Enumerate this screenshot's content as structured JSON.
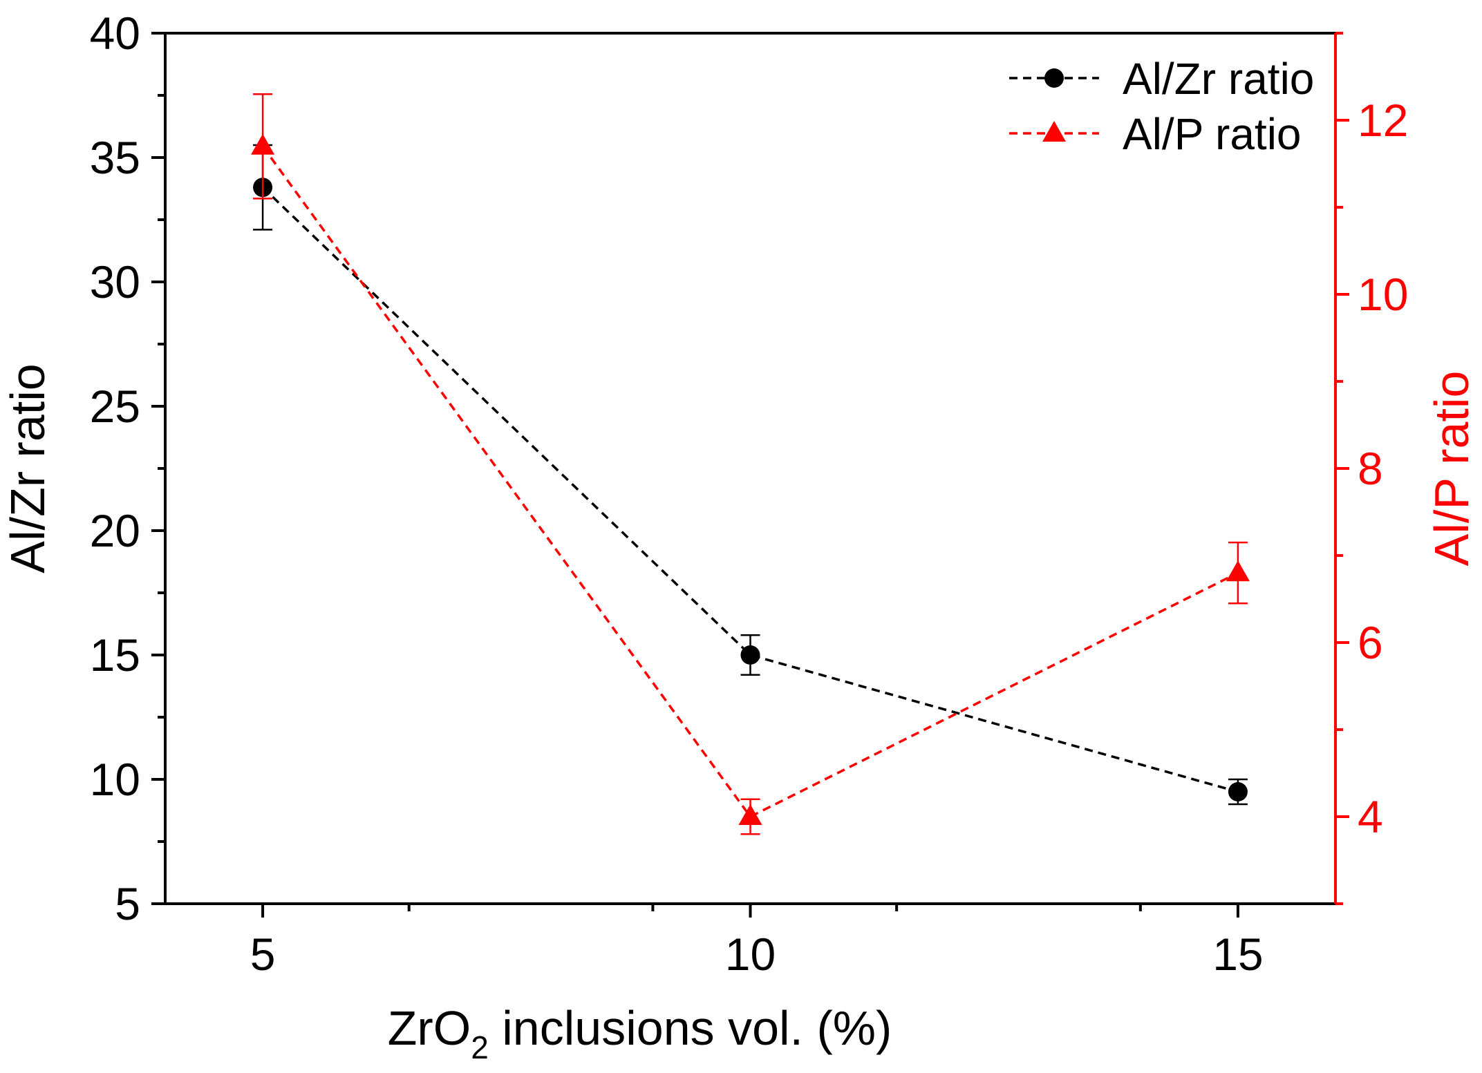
{
  "chart_data": {
    "type": "line",
    "x": [
      5,
      10,
      15
    ],
    "xlabel_main": "ZrO",
    "xlabel_sub": "2",
    "xlabel_rest": " inclusions vol. (%)",
    "xlim": [
      4,
      16
    ],
    "xticks": [
      "5",
      "10",
      "15"
    ],
    "y_left": {
      "label": "Al/Zr ratio",
      "lim": [
        5,
        40
      ],
      "ticks": [
        "5",
        "10",
        "15",
        "20",
        "25",
        "30",
        "35",
        "40"
      ],
      "color": "#000000"
    },
    "y_right": {
      "label": "Al/P ratio",
      "lim": [
        3,
        13
      ],
      "ticks": [
        "4",
        "6",
        "8",
        "10",
        "12"
      ],
      "color": "#ff0000"
    },
    "series": [
      {
        "name": "Al/Zr ratio",
        "axis": "left",
        "marker": "circle",
        "color": "#000000",
        "values": [
          33.8,
          15.0,
          9.5
        ],
        "errors": [
          1.7,
          0.8,
          0.5
        ]
      },
      {
        "name": "Al/P ratio",
        "axis": "right",
        "marker": "triangle",
        "color": "#ff0000",
        "values": [
          11.7,
          4.0,
          6.8
        ],
        "errors": [
          0.6,
          0.2,
          0.35
        ]
      }
    ],
    "legend_position": "top-right"
  }
}
